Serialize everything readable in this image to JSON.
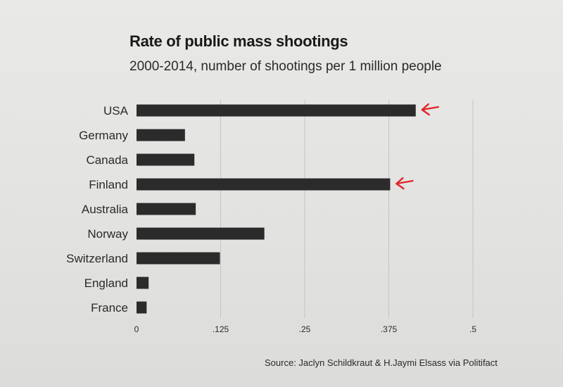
{
  "chart_data": {
    "type": "bar",
    "orientation": "horizontal",
    "title": "Rate of public mass shootings",
    "subtitle": "2000-2014, number of shootings per 1 million people",
    "categories": [
      "USA",
      "Germany",
      "Canada",
      "Finland",
      "Australia",
      "Norway",
      "Switzerland",
      "England",
      "France"
    ],
    "values": [
      0.415,
      0.072,
      0.086,
      0.377,
      0.088,
      0.19,
      0.124,
      0.018,
      0.015
    ],
    "xlim": [
      0,
      0.5
    ],
    "ticks": [
      0,
      0.125,
      0.25,
      0.375,
      0.5
    ],
    "tick_labels": [
      "0",
      ".125",
      ".25",
      ".375",
      ".5"
    ],
    "grid": "vertical",
    "highlighted": [
      "USA",
      "Finland"
    ],
    "bar_color": "#2b2b2b",
    "highlight_arrow_color": "#e0242b",
    "grid_color": "#c4c4c4",
    "source": "Source: Jaclyn Schildkraut & H.Jaymi Elsass via Politifact"
  }
}
